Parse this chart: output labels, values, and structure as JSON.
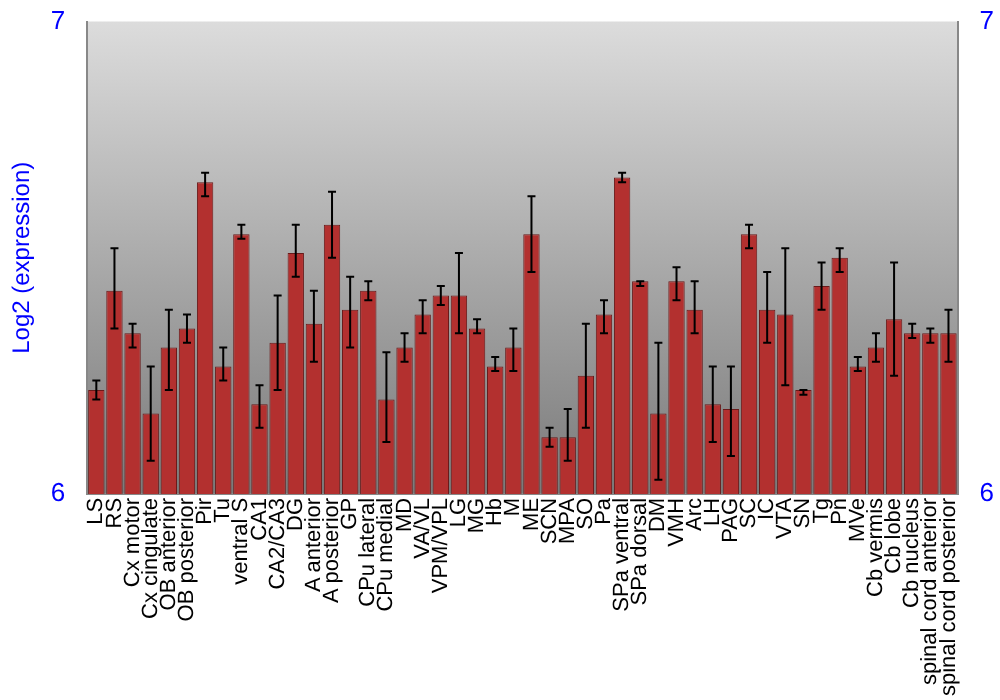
{
  "chart_data": {
    "type": "bar",
    "ylabel": "Log2 (expression)",
    "categories": [
      "LS",
      "RS",
      "Cx motor",
      "Cx cingulate",
      "OB anterior",
      "OB posterior",
      "Pir",
      "Tu",
      "ventral S",
      "CA1",
      "CA2/CA3",
      "DG",
      "A anterior",
      "A posterior",
      "GP",
      "CPu lateral",
      "CPu medial",
      "MD",
      "VA/VL",
      "VPM/VPL",
      "LG",
      "MG",
      "Hb",
      "M",
      "ME",
      "SCN",
      "MPA",
      "SO",
      "Pa",
      "SPa ventral",
      "SPa dorsal",
      "DM",
      "VMH",
      "Arc",
      "LH",
      "PAG",
      "SC",
      "IC",
      "VTA",
      "SN",
      "Tg",
      "Pn",
      "MVe",
      "Cb vermis",
      "Cb lobe",
      "Cb nucleus",
      "spinal cord anterior",
      "spinal cord posterior"
    ],
    "values": [
      6.22,
      6.43,
      6.34,
      6.17,
      6.31,
      6.35,
      6.66,
      6.27,
      6.55,
      6.19,
      6.32,
      6.51,
      6.36,
      6.57,
      6.39,
      6.43,
      6.2,
      6.31,
      6.38,
      6.42,
      6.42,
      6.35,
      6.27,
      6.31,
      6.55,
      6.12,
      6.12,
      6.25,
      6.38,
      6.67,
      6.45,
      6.17,
      6.45,
      6.39,
      6.19,
      6.18,
      6.55,
      6.39,
      6.38,
      6.22,
      6.44,
      6.5,
      6.27,
      6.31,
      6.37,
      6.34,
      6.34,
      6.34
    ],
    "errors": [
      [
        6.2,
        6.24
      ],
      [
        6.35,
        6.52
      ],
      [
        6.31,
        6.36
      ],
      [
        6.07,
        6.27
      ],
      [
        6.22,
        6.39
      ],
      [
        6.32,
        6.38
      ],
      [
        6.63,
        6.68
      ],
      [
        6.24,
        6.31
      ],
      [
        6.54,
        6.57
      ],
      [
        6.14,
        6.23
      ],
      [
        6.22,
        6.42
      ],
      [
        6.46,
        6.57
      ],
      [
        6.28,
        6.43
      ],
      [
        6.5,
        6.64
      ],
      [
        6.31,
        6.46
      ],
      [
        6.41,
        6.45
      ],
      [
        6.11,
        6.3
      ],
      [
        6.28,
        6.34
      ],
      [
        6.34,
        6.41
      ],
      [
        6.4,
        6.44
      ],
      [
        6.34,
        6.51
      ],
      [
        6.34,
        6.37
      ],
      [
        6.26,
        6.29
      ],
      [
        6.26,
        6.35
      ],
      [
        6.47,
        6.63
      ],
      [
        6.1,
        6.14
      ],
      [
        6.07,
        6.18
      ],
      [
        6.14,
        6.36
      ],
      [
        6.34,
        6.41
      ],
      [
        6.66,
        6.68
      ],
      [
        6.44,
        6.45
      ],
      [
        6.03,
        6.32
      ],
      [
        6.41,
        6.48
      ],
      [
        6.34,
        6.45
      ],
      [
        6.11,
        6.27
      ],
      [
        6.08,
        6.27
      ],
      [
        6.52,
        6.57
      ],
      [
        6.32,
        6.47
      ],
      [
        6.23,
        6.52
      ],
      [
        6.21,
        6.22
      ],
      [
        6.39,
        6.49
      ],
      [
        6.47,
        6.52
      ],
      [
        6.26,
        6.29
      ],
      [
        6.28,
        6.34
      ],
      [
        6.25,
        6.49
      ],
      [
        6.33,
        6.36
      ],
      [
        6.32,
        6.35
      ],
      [
        6.28,
        6.39
      ]
    ],
    "color": "#b3302f",
    "ylim": [
      6,
      7
    ],
    "yticks": [
      6,
      7
    ],
    "y2lim": [
      6,
      7
    ],
    "y2ticks": [
      6,
      7
    ],
    "grid": false,
    "legend": false
  }
}
